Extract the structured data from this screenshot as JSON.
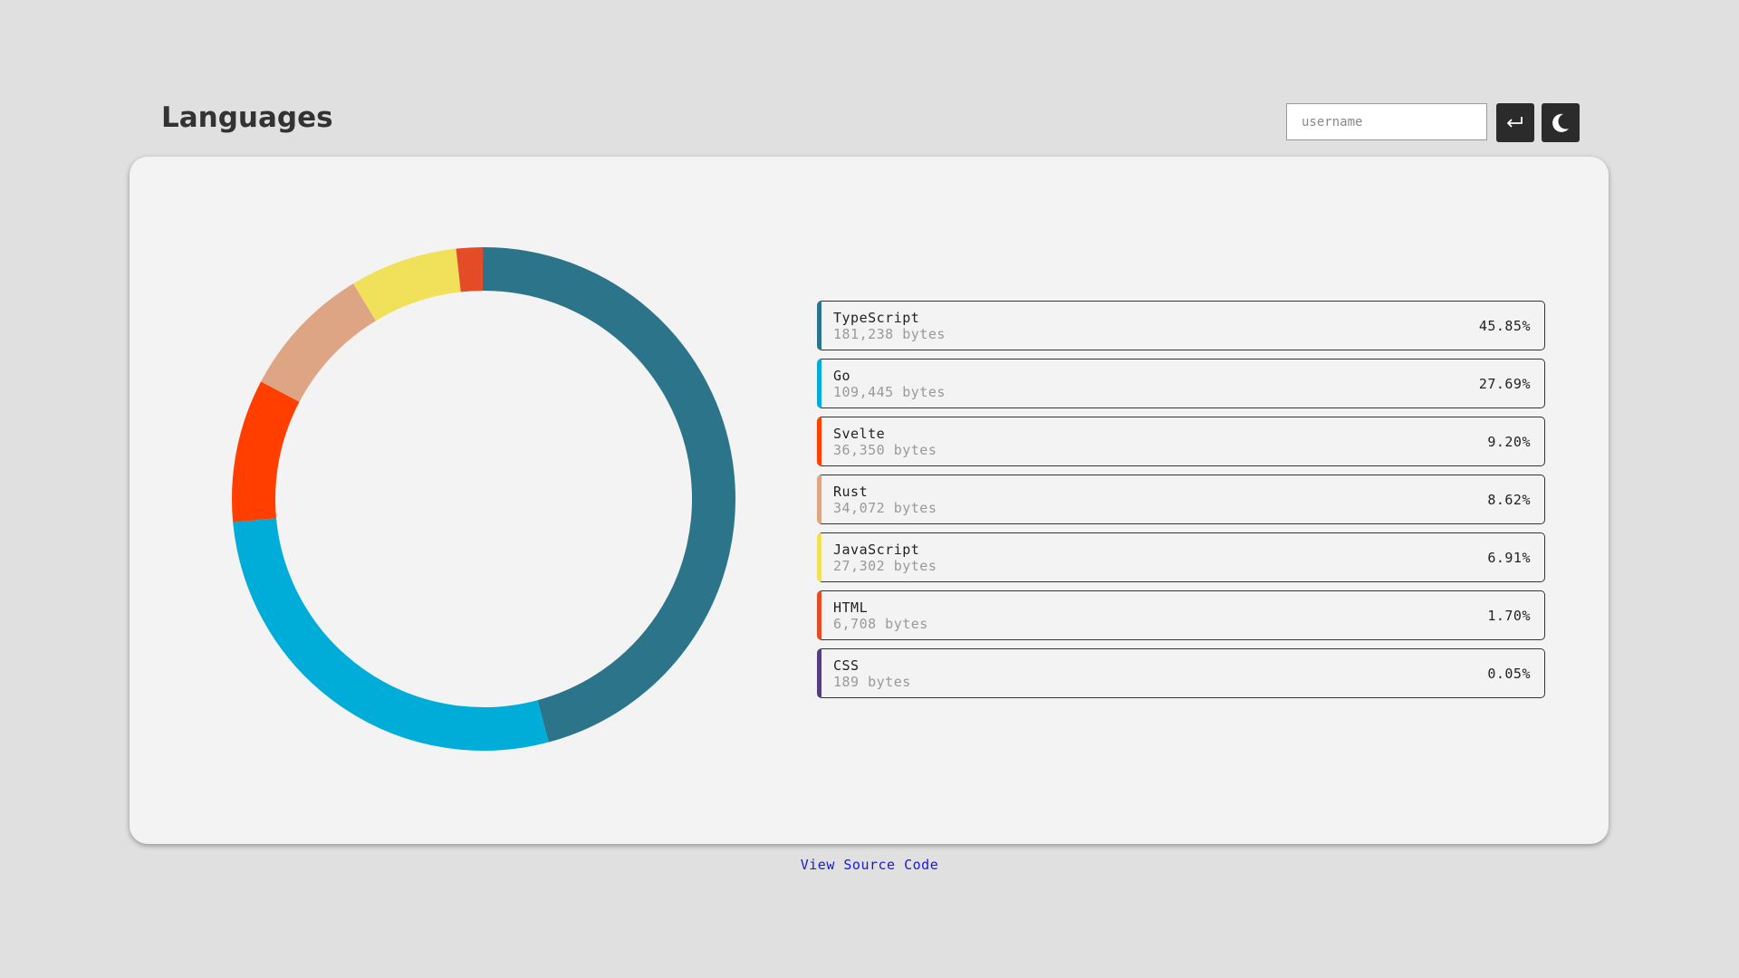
{
  "header": {
    "title": "Languages",
    "input_placeholder": "username"
  },
  "chart_data": {
    "type": "donut",
    "categories": [
      "TypeScript",
      "Go",
      "Svelte",
      "Rust",
      "JavaScript",
      "HTML",
      "CSS"
    ],
    "values": [
      45.85,
      27.69,
      9.2,
      8.62,
      6.91,
      1.7,
      0.05
    ],
    "value_labels": [
      "45.85%",
      "27.69%",
      "9.20%",
      "8.62%",
      "6.91%",
      "1.70%",
      "0.05%"
    ],
    "byte_labels": [
      "181,238 bytes",
      "109,445 bytes",
      "36,350 bytes",
      "34,072 bytes",
      "27,302 bytes",
      "6,708 bytes",
      "189 bytes"
    ],
    "colors": [
      "#2b7489",
      "#00add8",
      "#ff3e00",
      "#dea584",
      "#f1e05a",
      "#e34c26",
      "#563d7c"
    ]
  },
  "footer": {
    "link": "View Source Code"
  }
}
